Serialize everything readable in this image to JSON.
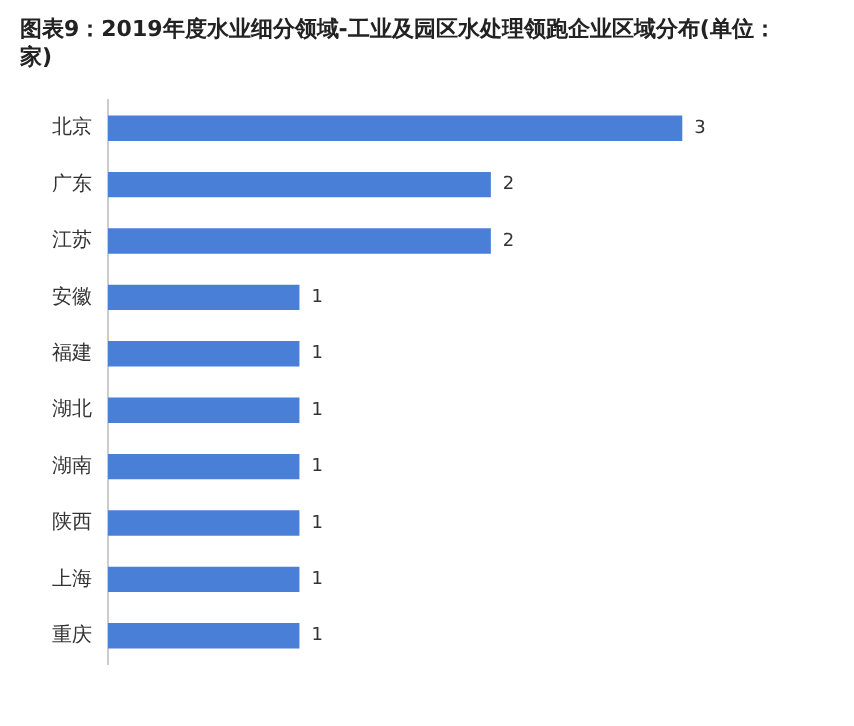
{
  "chart_data": {
    "type": "bar",
    "orientation": "horizontal",
    "title": "图表9：2019年度水业细分领域-工业及园区水处理领跑企业区域分布(单位：家)",
    "categories": [
      "北京",
      "广东",
      "江苏",
      "安徽",
      "福建",
      "湖北",
      "湖南",
      "陕西",
      "上海",
      "重庆"
    ],
    "values": [
      3,
      2,
      2,
      1,
      1,
      1,
      1,
      1,
      1,
      1
    ],
    "color": "#4a7fd8",
    "data_labels": true,
    "grid": false,
    "legend": false
  }
}
